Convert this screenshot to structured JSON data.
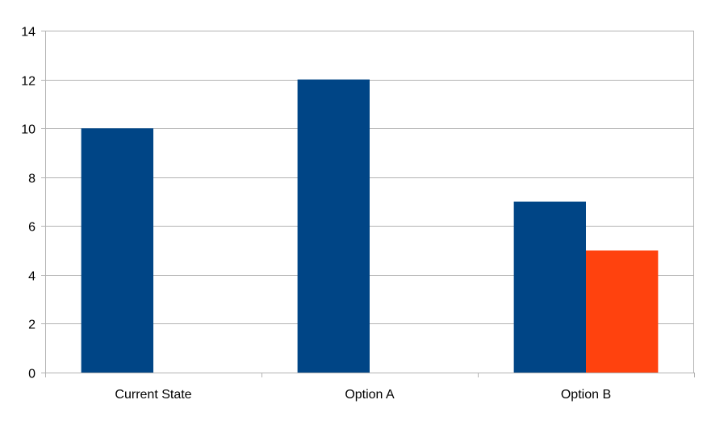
{
  "chart_data": {
    "type": "bar",
    "categories": [
      "Current State",
      "Option A",
      "Option B"
    ],
    "series": [
      {
        "values": [
          10,
          12,
          7
        ],
        "color": "#004586"
      },
      {
        "values": [
          null,
          null,
          5
        ],
        "color": "#ff420e"
      }
    ],
    "title": "",
    "xlabel": "",
    "ylabel": "",
    "ylim": [
      0,
      14
    ],
    "yticks": [
      0,
      2,
      4,
      6,
      8,
      10,
      12,
      14
    ],
    "grid": true,
    "legend": "none"
  }
}
